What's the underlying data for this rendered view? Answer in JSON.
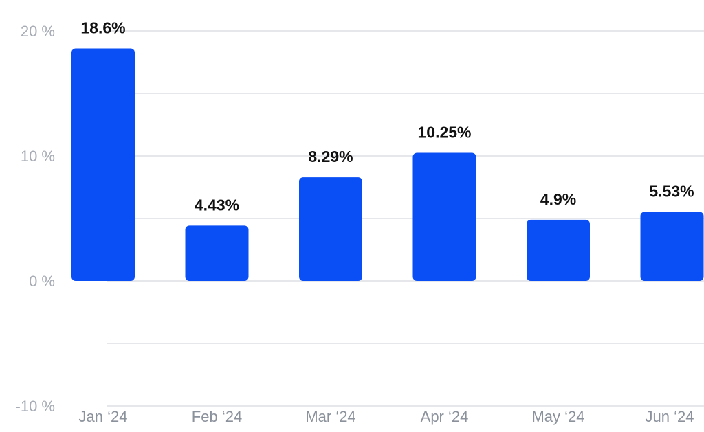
{
  "chart_data": {
    "type": "bar",
    "title": "",
    "xlabel": "",
    "ylabel": "",
    "categories": [
      "Jan ‘24",
      "Feb ‘24",
      "Mar ‘24",
      "Apr ‘24",
      "May ‘24",
      "Jun ‘24"
    ],
    "values": [
      18.6,
      4.43,
      8.29,
      10.25,
      4.9,
      5.53
    ],
    "data_labels": [
      "18.6%",
      "4.43%",
      "8.29%",
      "10.25%",
      "4.9%",
      "5.53%"
    ],
    "ylim": [
      -10,
      20
    ],
    "yticks": [
      20,
      10,
      0,
      -10
    ],
    "ytick_labels": [
      "20 %",
      "10 %",
      "0 %",
      "-10 %"
    ],
    "grid": true,
    "bar_color": "#0a4ef5",
    "grid_color": "#e6e7ea"
  }
}
